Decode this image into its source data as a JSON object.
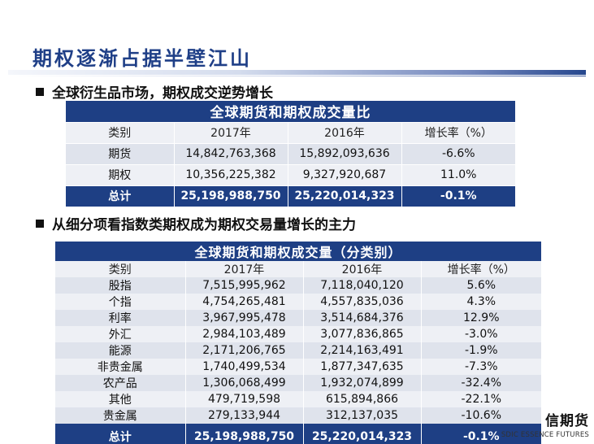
{
  "page": {
    "title": "期权逐渐占据半壁江山"
  },
  "section1": {
    "bullet": "全球衍生品市场，期权成交逆势增长",
    "table": {
      "caption": "全球期货和期权成交量比",
      "headers": [
        "类别",
        "2017年",
        "2016年",
        "增长率（%）"
      ],
      "rows": [
        [
          "期货",
          "14,842,763,368",
          "15,892,093,636",
          "-6.6%"
        ],
        [
          "期权",
          "10,356,225,382",
          "9,327,920,687",
          "11.0%"
        ]
      ],
      "total": [
        "总计",
        "25,198,988,750",
        "25,220,014,323",
        "-0.1%"
      ]
    }
  },
  "section2": {
    "bullet": "从细分项看指数类期权成为期权交易量增长的主力",
    "table": {
      "caption": "全球期货和期权成交量（分类别）",
      "headers": [
        "类别",
        "2017年",
        "2016年",
        "增长率（%）"
      ],
      "rows": [
        [
          "股指",
          "7,515,995,962",
          "7,118,040,120",
          "5.6%"
        ],
        [
          "个指",
          "4,754,265,481",
          "4,557,835,036",
          "4.3%"
        ],
        [
          "利率",
          "3,967,995,478",
          "3,514,684,376",
          "12.9%"
        ],
        [
          "外汇",
          "2,984,103,489",
          "3,077,836,865",
          "-3.0%"
        ],
        [
          "能源",
          "2,171,206,765",
          "2,214,163,491",
          "-1.9%"
        ],
        [
          "非贵金属",
          "1,740,499,534",
          "1,877,347,635",
          "-7.3%"
        ],
        [
          "农产品",
          "1,306,068,499",
          "1,932,074,899",
          "-32.4%"
        ],
        [
          "其他",
          "479,719,598",
          "615,894,866",
          "-22.1%"
        ],
        [
          "贵金属",
          "279,133,944",
          "312,137,035",
          "-10.6%"
        ]
      ],
      "total": [
        "总计",
        "25,198,988,750",
        "25,220,014,323",
        "-0.1%"
      ]
    }
  },
  "logo": {
    "cn": "信期货",
    "en": "SDIC ESSENCE FUTURES"
  },
  "colors": {
    "navy": "#1e3f84",
    "title": "#1f3f87",
    "row_shade": "#dfe3ec",
    "row_light": "#eef0f5"
  }
}
